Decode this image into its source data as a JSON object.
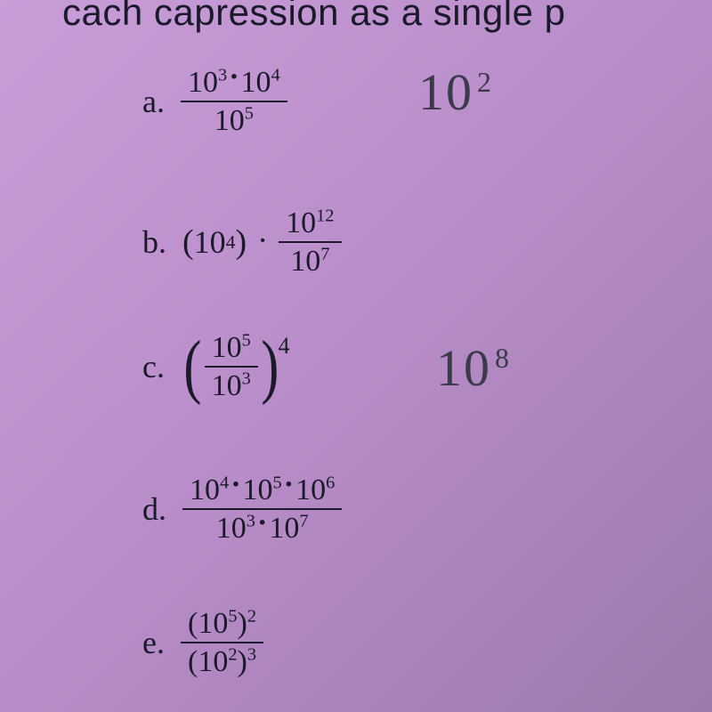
{
  "header": {
    "partial_text": "cach capression as a single p"
  },
  "problems": {
    "a": {
      "label": "a.",
      "numerator_base1": "10",
      "numerator_exp1": "3",
      "numerator_dot": "·",
      "numerator_base2": "10",
      "numerator_exp2": "4",
      "denominator_base": "10",
      "denominator_exp": "5"
    },
    "b": {
      "label": "b.",
      "term1_open": "(",
      "term1_base": "10",
      "term1_exp": "4",
      "term1_close": ")",
      "mult_dot": "·",
      "frac_num_base": "10",
      "frac_num_exp": "12",
      "frac_den_base": "10",
      "frac_den_exp": "7"
    },
    "c": {
      "label": "c.",
      "frac_num_base": "10",
      "frac_num_exp": "5",
      "frac_den_base": "10",
      "frac_den_exp": "3",
      "outer_exp": "4"
    },
    "d": {
      "label": "d.",
      "num_b1": "10",
      "num_e1": "4",
      "num_b2": "10",
      "num_e2": "5",
      "num_b3": "10",
      "num_e3": "6",
      "den_b1": "10",
      "den_e1": "3",
      "den_b2": "10",
      "den_e2": "7",
      "dot": "·"
    },
    "e": {
      "label": "e.",
      "num_inner_base": "10",
      "num_inner_exp": "5",
      "num_outer_exp": "2",
      "den_inner_base": "10",
      "den_inner_exp": "2",
      "den_outer_exp": "3",
      "open": "(",
      "close": ")"
    }
  },
  "handwritten": {
    "a": {
      "base": "10",
      "exp": "2"
    },
    "c": {
      "base": "10",
      "exp": "8"
    }
  },
  "colors": {
    "background_top": "#c89dd8",
    "background_bottom": "#9a7aad",
    "text": "#1a1a2a",
    "handwritten": "#3a3a4a"
  }
}
